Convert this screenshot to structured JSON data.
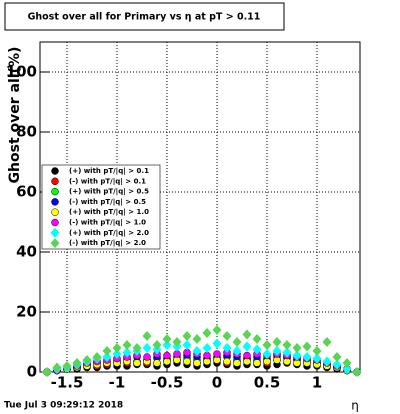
{
  "chart_data": {
    "type": "scatter",
    "title": "Ghost over all for Primary vs   η at pT > 0.11",
    "ylabel": "Ghost over all(%)",
    "xlabel": "η",
    "timestamp": "Tue Jul  3 09:29:12 2018",
    "xlim": [
      -1.77,
      1.43
    ],
    "ylim": [
      0,
      110
    ],
    "xticks": [
      -1.5,
      -1,
      -0.5,
      0,
      0.5,
      1
    ],
    "yticks": [
      0,
      20,
      40,
      60,
      80,
      100
    ],
    "grid": true,
    "x": [
      -1.7,
      -1.6,
      -1.5,
      -1.4,
      -1.3,
      -1.2,
      -1.1,
      -1.0,
      -0.9,
      -0.8,
      -0.7,
      -0.6,
      -0.5,
      -0.4,
      -0.3,
      -0.2,
      -0.1,
      0,
      0.1,
      0.2,
      0.3,
      0.4,
      0.5,
      0.6,
      0.7,
      0.8,
      0.9,
      1.0,
      1.1,
      1.2,
      1.3,
      1.4
    ],
    "series": [
      {
        "name": "(+) with pT/|q| > 0.1",
        "color": "#000000",
        "marker": "circle",
        "values": [
          0,
          0.5,
          1,
          1,
          1.5,
          1.5,
          2,
          2,
          2,
          2.5,
          2.5,
          2,
          2.5,
          3,
          2.5,
          2,
          2.5,
          3,
          2.5,
          2,
          2.5,
          2.5,
          2,
          2.5,
          3,
          2.5,
          2,
          2,
          1.5,
          1,
          0.5,
          0
        ]
      },
      {
        "name": "(-) with pT/|q| > 0.1",
        "color": "#ff0000",
        "marker": "circle",
        "values": [
          0,
          0.5,
          1,
          1.5,
          2,
          2,
          2.5,
          3,
          3,
          3.5,
          3,
          3,
          3.5,
          4,
          3.5,
          3,
          3.5,
          4,
          3,
          3.5,
          4,
          3.5,
          3,
          4,
          5,
          4,
          3,
          3,
          2,
          1.5,
          0.5,
          0
        ]
      },
      {
        "name": "(+) with pT/|q| > 0.5",
        "color": "#00ff00",
        "marker": "circle",
        "values": [
          0,
          0.5,
          1,
          1.5,
          2.5,
          3,
          3,
          3.5,
          4,
          3.5,
          4,
          4.5,
          4,
          4,
          4.5,
          4,
          4,
          4.5,
          5,
          4,
          4.5,
          4,
          4,
          5,
          4.5,
          4,
          3.5,
          3,
          2.5,
          1.5,
          1,
          0
        ]
      },
      {
        "name": "(-) with pT/|q| > 0.5",
        "color": "#0000ff",
        "marker": "circle",
        "values": [
          0,
          0.5,
          1,
          2,
          2.5,
          3,
          3.5,
          4,
          4.5,
          5,
          4,
          5,
          4.5,
          5,
          5.5,
          5,
          4.5,
          5,
          5.5,
          5,
          4.5,
          5,
          4.5,
          5.5,
          5,
          4.5,
          4,
          3.5,
          2.5,
          2,
          1,
          0
        ]
      },
      {
        "name": "(+) with pT/|q| > 1.0",
        "color": "#ffff00",
        "marker": "circle",
        "values": [
          0,
          0.5,
          1,
          1.5,
          2,
          2.5,
          3,
          3,
          3.5,
          3,
          3.5,
          3,
          3.5,
          4,
          3.5,
          3,
          3.5,
          4,
          3.5,
          3,
          3.5,
          3,
          3.5,
          4,
          3.5,
          3,
          3,
          2.5,
          2,
          1.5,
          0.5,
          0
        ]
      },
      {
        "name": "(-) with pT/|q| > 1.0",
        "color": "#ff00ff",
        "marker": "circle",
        "values": [
          0,
          0.5,
          1.5,
          2,
          3,
          3.5,
          4,
          4.5,
          5,
          5.5,
          5,
          6,
          5.5,
          6,
          6.5,
          6,
          5.5,
          6,
          6.5,
          6,
          5.5,
          6,
          5.5,
          6,
          5.5,
          5,
          4.5,
          4,
          3,
          2,
          1,
          0
        ]
      },
      {
        "name": "(+) with pT/|q| > 2.0",
        "color": "#00ffff",
        "marker": "diamond",
        "values": [
          0,
          1,
          1.5,
          2.5,
          3.5,
          4.5,
          5,
          6,
          6.5,
          7,
          8,
          7.5,
          9,
          8.5,
          9,
          7,
          8,
          9.5,
          8,
          7,
          8.5,
          7.5,
          6,
          7,
          6.5,
          5.5,
          5,
          4.5,
          3.5,
          2.5,
          1,
          0
        ]
      },
      {
        "name": "(-) with pT/|q| > 2.0",
        "color": "#59d454",
        "marker": "diamond",
        "values": [
          0,
          1.5,
          2,
          3,
          4,
          5,
          7,
          8,
          9,
          8,
          12,
          9,
          11,
          10,
          12,
          11,
          13,
          14,
          12,
          10,
          12.5,
          11,
          9,
          10,
          9,
          8,
          8.5,
          7,
          10,
          5,
          3,
          0
        ]
      }
    ]
  }
}
